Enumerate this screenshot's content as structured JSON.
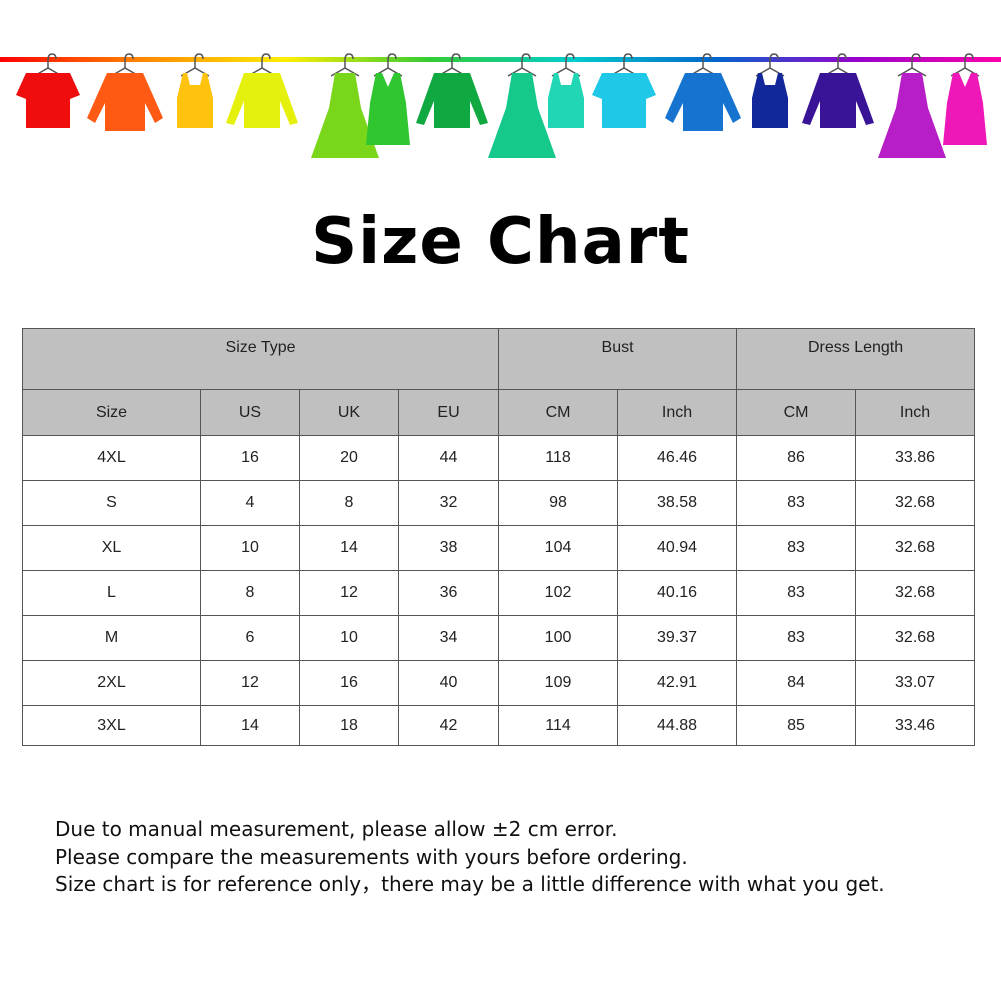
{
  "banner": {
    "rail_colors": [
      "#ff0000",
      "#ff8800",
      "#ffee00",
      "#33cc33",
      "#00cccc",
      "#0066cc",
      "#9900cc",
      "#ff00aa"
    ],
    "garments": [
      {
        "type": "tshirt",
        "color": "#f00d0d"
      },
      {
        "type": "shirt",
        "color": "#ff5a14"
      },
      {
        "type": "tank",
        "color": "#ffc20d"
      },
      {
        "type": "sweater",
        "color": "#e6f00d"
      },
      {
        "type": "dress",
        "color": "#7ad61a"
      },
      {
        "type": "tank-dress",
        "color": "#2fc62f"
      },
      {
        "type": "sweater",
        "color": "#10a840"
      },
      {
        "type": "dress",
        "color": "#14c98a"
      },
      {
        "type": "tank",
        "color": "#20d6b4"
      },
      {
        "type": "tshirt",
        "color": "#20c8e8"
      },
      {
        "type": "shirt",
        "color": "#1673d0"
      },
      {
        "type": "tank",
        "color": "#12289a"
      },
      {
        "type": "sweater",
        "color": "#3a1496"
      },
      {
        "type": "dress",
        "color": "#b81ec8"
      },
      {
        "type": "tank-dress",
        "color": "#ee18b8"
      }
    ]
  },
  "title": "Size Chart",
  "table": {
    "group_headers": [
      "Size Type",
      "Bust",
      "Dress Length"
    ],
    "columns": [
      "Size",
      "US",
      "UK",
      "EU",
      "CM",
      "Inch",
      "CM",
      "Inch"
    ],
    "rows": [
      [
        "4XL",
        "16",
        "20",
        "44",
        "118",
        "46.46",
        "86",
        "33.86"
      ],
      [
        "S",
        "4",
        "8",
        "32",
        "98",
        "38.58",
        "83",
        "32.68"
      ],
      [
        "XL",
        "10",
        "14",
        "38",
        "104",
        "40.94",
        "83",
        "32.68"
      ],
      [
        "L",
        "8",
        "12",
        "36",
        "102",
        "40.16",
        "83",
        "32.68"
      ],
      [
        "M",
        "6",
        "10",
        "34",
        "100",
        "39.37",
        "83",
        "32.68"
      ],
      [
        "2XL",
        "12",
        "16",
        "40",
        "109",
        "42.91",
        "84",
        "33.07"
      ],
      [
        "3XL",
        "14",
        "18",
        "42",
        "114",
        "44.88",
        "85",
        "33.46"
      ]
    ]
  },
  "notes": [
    "Due to manual measurement, please allow ±2 cm error.",
    "Please compare the measurements with yours before ordering.",
    "Size chart is for reference only，there may be a little difference with what you get."
  ]
}
